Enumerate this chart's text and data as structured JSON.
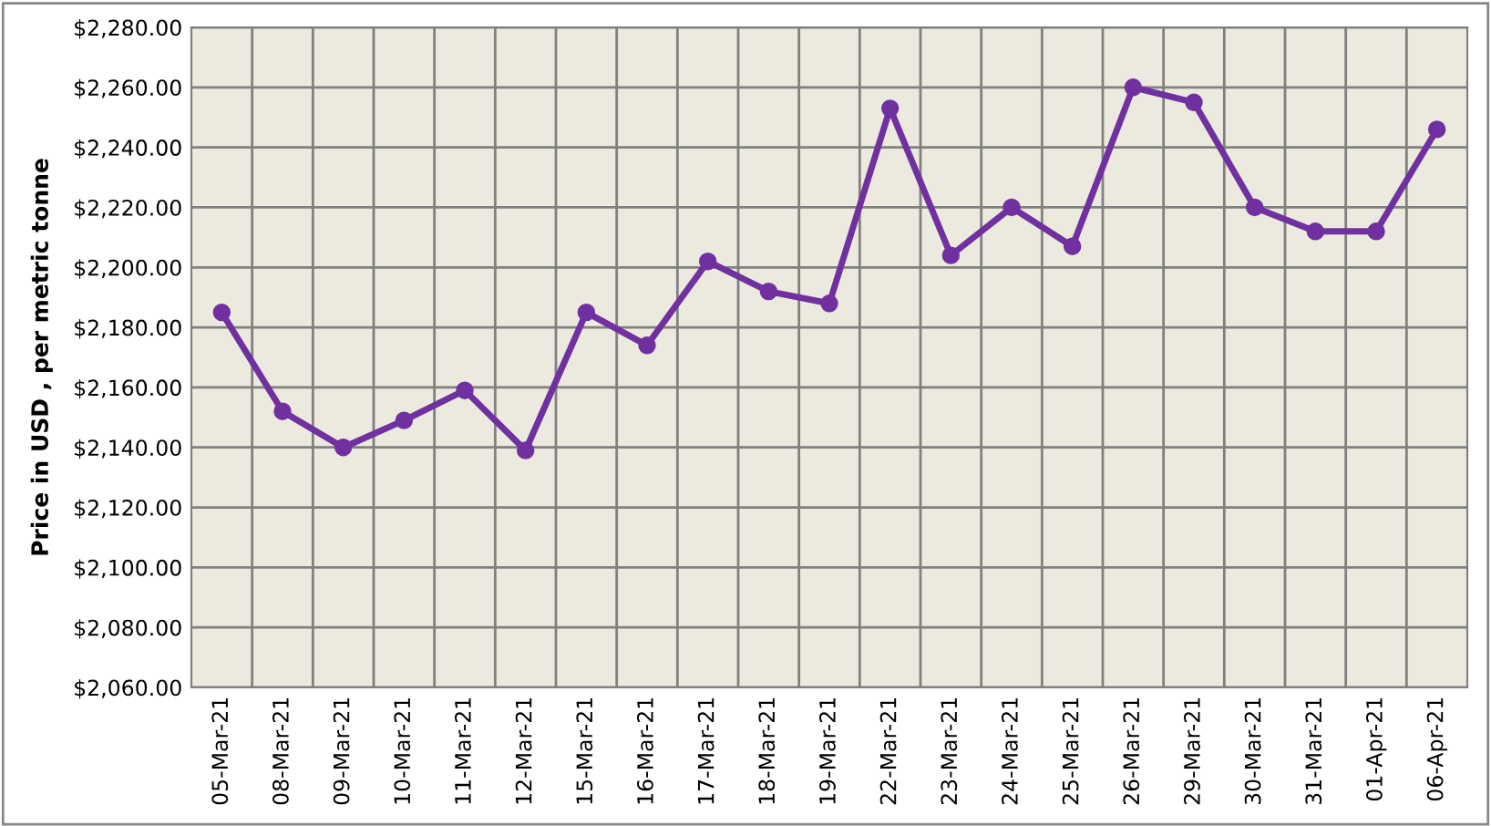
{
  "chart_data": {
    "type": "line",
    "ylabel": "Price in USD , per metric tonne",
    "categories": [
      "05-Mar-21",
      "08-Mar-21",
      "09-Mar-21",
      "10-Mar-21",
      "11-Mar-21",
      "12-Mar-21",
      "15-Mar-21",
      "16-Mar-21",
      "17-Mar-21",
      "18-Mar-21",
      "19-Mar-21",
      "22-Mar-21",
      "23-Mar-21",
      "24-Mar-21",
      "25-Mar-21",
      "26-Mar-21",
      "29-Mar-21",
      "30-Mar-21",
      "31-Mar-21",
      "01-Apr-21",
      "06-Apr-21"
    ],
    "series": [
      {
        "color": "#7030a0",
        "values": [
          2185,
          2152,
          2140,
          2149,
          2159,
          2139,
          2185,
          2174,
          2202,
          2192,
          2188,
          2253,
          2204,
          2220,
          2207,
          2260,
          2255,
          2220,
          2212,
          2212,
          2246
        ]
      }
    ],
    "ylim": [
      2060,
      2280
    ],
    "yticks": [
      {
        "value": 2060,
        "label": "$2,060.00"
      },
      {
        "value": 2080,
        "label": "$2,080.00"
      },
      {
        "value": 2100,
        "label": "$2,100.00"
      },
      {
        "value": 2120,
        "label": "$2,120.00"
      },
      {
        "value": 2140,
        "label": "$2,140.00"
      },
      {
        "value": 2160,
        "label": "$2,160.00"
      },
      {
        "value": 2180,
        "label": "$2,180.00"
      },
      {
        "value": 2200,
        "label": "$2,200.00"
      },
      {
        "value": 2220,
        "label": "$2,220.00"
      },
      {
        "value": 2240,
        "label": "$2,240.00"
      },
      {
        "value": 2260,
        "label": "$2,260.00"
      },
      {
        "value": 2280,
        "label": "$2,280.00"
      }
    ],
    "grid": true,
    "legend": false,
    "marker": "circle",
    "line_style": "solid"
  }
}
